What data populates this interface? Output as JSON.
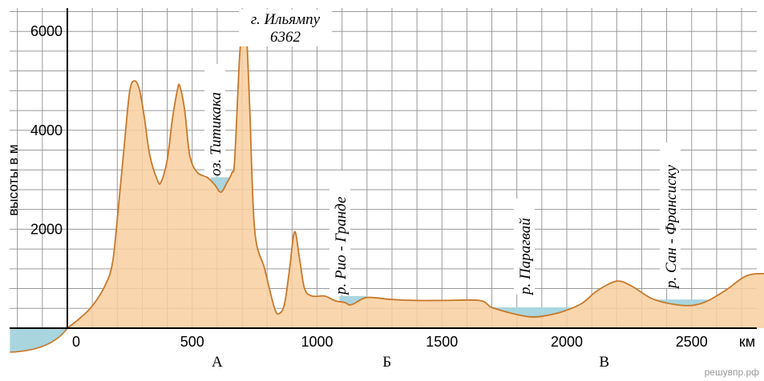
{
  "chart_data": {
    "type": "area",
    "title": "",
    "ylabel": "высоты в м",
    "xunit": "км",
    "xlim": [
      -230,
      2850
    ],
    "ylim": [
      -500,
      6450
    ],
    "x_ticks": [
      0,
      500,
      1000,
      1500,
      2000,
      2500
    ],
    "x_tick_labels": [
      "0",
      "500",
      "1000",
      "1500",
      "2000",
      "2500"
    ],
    "y_ticks": [
      2000,
      4000,
      6000
    ],
    "y_tick_labels": [
      "2000",
      "4000",
      "6000"
    ],
    "grid": true,
    "fill_color": "#f9cfa0",
    "line_color": "#c8782a",
    "water_color": "#a9d5df",
    "profile": [
      [
        0,
        0
      ],
      [
        50,
        200
      ],
      [
        100,
        450
      ],
      [
        150,
        850
      ],
      [
        180,
        1300
      ],
      [
        200,
        2200
      ],
      [
        230,
        3800
      ],
      [
        250,
        4800
      ],
      [
        270,
        5000
      ],
      [
        290,
        4800
      ],
      [
        310,
        4200
      ],
      [
        330,
        3500
      ],
      [
        360,
        3000
      ],
      [
        375,
        2950
      ],
      [
        400,
        3400
      ],
      [
        420,
        4200
      ],
      [
        440,
        4800
      ],
      [
        450,
        4900
      ],
      [
        470,
        4400
      ],
      [
        490,
        3500
      ],
      [
        520,
        3150
      ],
      [
        560,
        3050
      ],
      [
        590,
        2900
      ],
      [
        615,
        2750
      ],
      [
        640,
        2950
      ],
      [
        660,
        3150
      ],
      [
        670,
        3400
      ],
      [
        690,
        5500
      ],
      [
        705,
        6250
      ],
      [
        715,
        6200
      ],
      [
        730,
        4500
      ],
      [
        750,
        2000
      ],
      [
        790,
        1200
      ],
      [
        830,
        400
      ],
      [
        850,
        300
      ],
      [
        870,
        500
      ],
      [
        890,
        1200
      ],
      [
        910,
        1950
      ],
      [
        930,
        1400
      ],
      [
        950,
        800
      ],
      [
        980,
        650
      ],
      [
        1030,
        650
      ],
      [
        1075,
        550
      ],
      [
        1110,
        520
      ],
      [
        1130,
        470
      ],
      [
        1150,
        500
      ],
      [
        1200,
        620
      ],
      [
        1300,
        580
      ],
      [
        1400,
        560
      ],
      [
        1500,
        560
      ],
      [
        1650,
        560
      ],
      [
        1700,
        420
      ],
      [
        1780,
        300
      ],
      [
        1850,
        230
      ],
      [
        1900,
        240
      ],
      [
        1980,
        330
      ],
      [
        2060,
        500
      ],
      [
        2120,
        750
      ],
      [
        2200,
        950
      ],
      [
        2260,
        850
      ],
      [
        2340,
        600
      ],
      [
        2430,
        480
      ],
      [
        2500,
        460
      ],
      [
        2560,
        540
      ],
      [
        2640,
        780
      ],
      [
        2720,
        1060
      ],
      [
        2800,
        1100
      ],
      [
        2850,
        1040
      ]
    ],
    "sea_level_x": [
      -230,
      0
    ],
    "water_bodies": [
      {
        "x": [
          575,
          690
        ],
        "level": 3050
      },
      {
        "x": [
          1090,
          1200
        ],
        "level": 650
      },
      {
        "x": [
          1650,
          2050
        ],
        "level": 420
      },
      {
        "x": [
          2350,
          2640
        ],
        "level": 580
      }
    ],
    "annotations": [
      {
        "text": "г. Ильямпу",
        "x": 705,
        "y": 6250
      },
      {
        "text": "6362",
        "x": 705,
        "y": 6250
      },
      {
        "text": "оз. Титикака",
        "x": 620,
        "y": 3050
      },
      {
        "text": "р. Рио - Гранде",
        "x": 1145,
        "y": 650
      },
      {
        "text": "р. Парагвай",
        "x": 1870,
        "y": 420
      },
      {
        "text": "р. Сан - Франсиску",
        "x": 2470,
        "y": 580
      }
    ],
    "section_labels": [
      {
        "text": "А",
        "x": 600
      },
      {
        "text": "Б",
        "x": 1280
      },
      {
        "text": "В",
        "x": 2150
      }
    ]
  },
  "watermark": "решувпр.рф"
}
